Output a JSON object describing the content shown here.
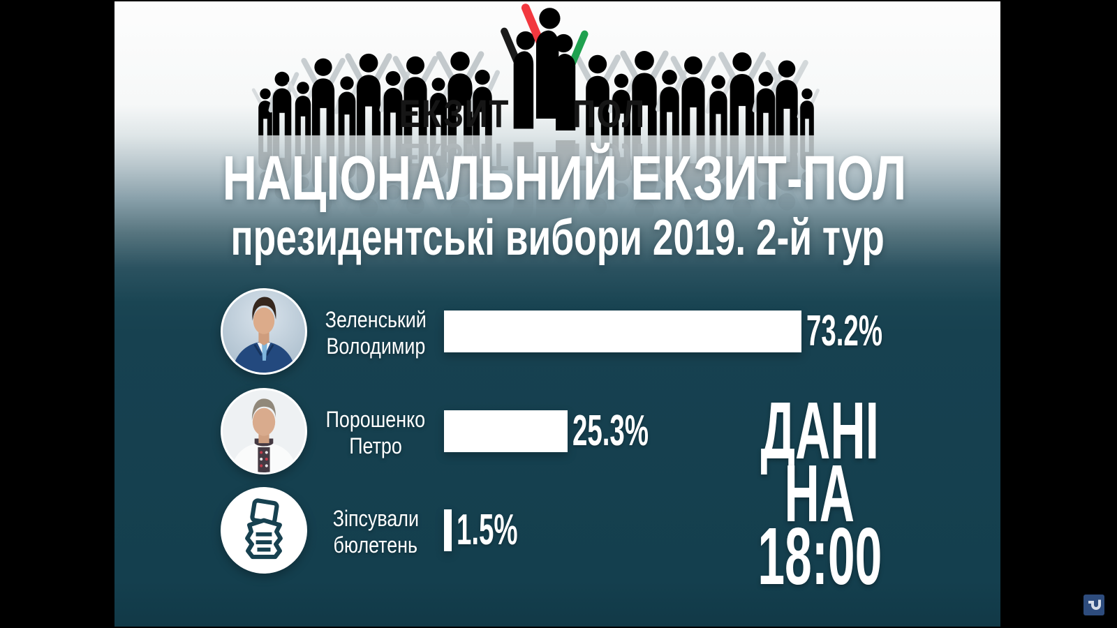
{
  "logo": {
    "left_text": "ЕКЗИТ",
    "right_text": "ПОЛ"
  },
  "header": {
    "title": "НАЦІОНАЛЬНИЙ ЕКЗИТ-ПОЛ",
    "subtitle": "президентські вибори 2019. 2-й тур"
  },
  "chart_data": {
    "type": "bar",
    "orientation": "horizontal",
    "title": "НАЦІОНАЛЬНИЙ ЕКЗИТ-ПОЛ",
    "subtitle": "президентські вибори 2019. 2-й тур",
    "categories": [
      "Зеленський Володимир",
      "Порошенко Петро",
      "Зіпсували бюлетень"
    ],
    "values": [
      73.2,
      25.3,
      1.5
    ],
    "value_labels": [
      "73.2%",
      "25.3%",
      "1.5%"
    ],
    "xlim": [
      0,
      100
    ],
    "bar_color": "#ffffff",
    "grid": false,
    "legend": false
  },
  "rows": [
    {
      "line1": "Зеленський",
      "line2": "Володимир",
      "value_label": "73.2%"
    },
    {
      "line1": "Порошенко",
      "line2": "Петро",
      "value_label": "25.3%"
    },
    {
      "line1": "Зіпсували",
      "line2": "бюлетень",
      "value_label": "1.5%"
    }
  ],
  "timestamp_block": {
    "line1": "ДАНІ",
    "line2": "НА",
    "line3": "18:00"
  },
  "colors": {
    "background_teal": "#164150",
    "letterbox": "#000000",
    "logo_black": "#1b1b1b",
    "logo_red": "#f2383f",
    "logo_green": "#1fa14f",
    "crowd_gray": "#c7cdd0",
    "bar_white": "#ffffff",
    "watermark_blue": "#2e4c7d"
  }
}
